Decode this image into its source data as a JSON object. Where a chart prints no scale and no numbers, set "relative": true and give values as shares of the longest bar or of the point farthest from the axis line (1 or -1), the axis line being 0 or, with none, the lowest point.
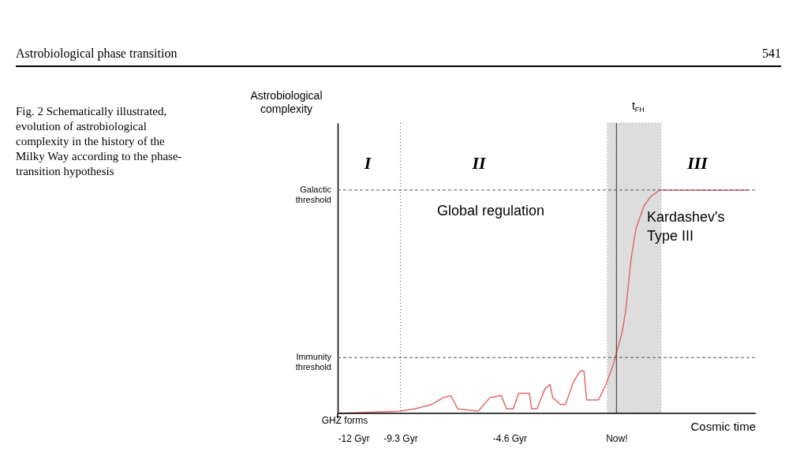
{
  "chart_data": {
    "type": "line",
    "relative": true,
    "xlabel": "Cosmic time",
    "x": [
      -12,
      -9.3,
      -8.68,
      -7.95,
      -7.46,
      -7.13,
      -6.83,
      -5.95,
      -5.45,
      -4.96,
      -4.73,
      -4.44,
      -4.21,
      -3.93,
      -3.75,
      -3.65,
      -3.42,
      -3.08,
      -2.86,
      -2.74,
      -2.41,
      -2.19,
      -1.85,
      -1.56,
      -1.4,
      -1.28,
      -0.95,
      -0.77,
      -0.45,
      -0.16,
      0.0,
      0.24,
      0.4,
      0.51,
      0.63,
      0.75,
      0.85,
      1.19,
      1.47,
      1.86,
      5.69
    ],
    "series": [
      {
        "color": "#e06a6a",
        "values": [
          0,
          0.01,
          0.02,
          0.04,
          0.07,
          0.08,
          0.02,
          0.01,
          0.07,
          0.08,
          0.02,
          0.02,
          0.09,
          0.09,
          0.09,
          0.02,
          0.02,
          0.11,
          0.13,
          0.07,
          0.04,
          0.04,
          0.14,
          0.19,
          0.19,
          0.06,
          0.06,
          0.06,
          0.13,
          0.21,
          0.27,
          0.36,
          0.46,
          0.57,
          0.69,
          0.77,
          0.83,
          0.93,
          0.97,
          1.0,
          1.0
        ]
      }
    ],
    "xlim": [
      -12,
      6
    ],
    "xticks": [
      {
        "value": -12,
        "label": "-12 Gyr"
      },
      {
        "value": -9.3,
        "label": "-9.3 Gyr"
      },
      {
        "value": -4.6,
        "label": "-4.6 Gyr"
      },
      {
        "value": 0,
        "label": "Now!"
      }
    ],
    "ref_lines": [
      {
        "axis": "y",
        "value": 1.0,
        "label": "Galactic threshold",
        "line_style": "dashed",
        "color": "#555555"
      },
      {
        "axis": "y",
        "value": 0.25,
        "label": "Immunity threshold",
        "line_style": "dashed",
        "color": "#555555"
      },
      {
        "axis": "x",
        "value": -9.3,
        "line_style": "dotted",
        "color": "#555555"
      },
      {
        "axis": "x",
        "value": 0,
        "line_style": "solid",
        "color": "#333333"
      }
    ],
    "bands": [
      {
        "axis": "x",
        "from": -0.39,
        "to": 1.92,
        "label": "t$_{FH}$",
        "color": "#c8c8c8"
      }
    ],
    "annotations": [
      "Astrobiological phase transition",
      "541",
      "Fig. 2 Schematically illustrated, evolution of astrobiological complexity in the history of the Milky Way according to the phase-transition hypothesis",
      "I",
      "II",
      "III",
      "Global regulation",
      "Kardashev's Type III",
      "GHZ forms",
      "Astrobiological complexity"
    ],
    "grid": false,
    "marker": "none",
    "line_style": "solid"
  }
}
